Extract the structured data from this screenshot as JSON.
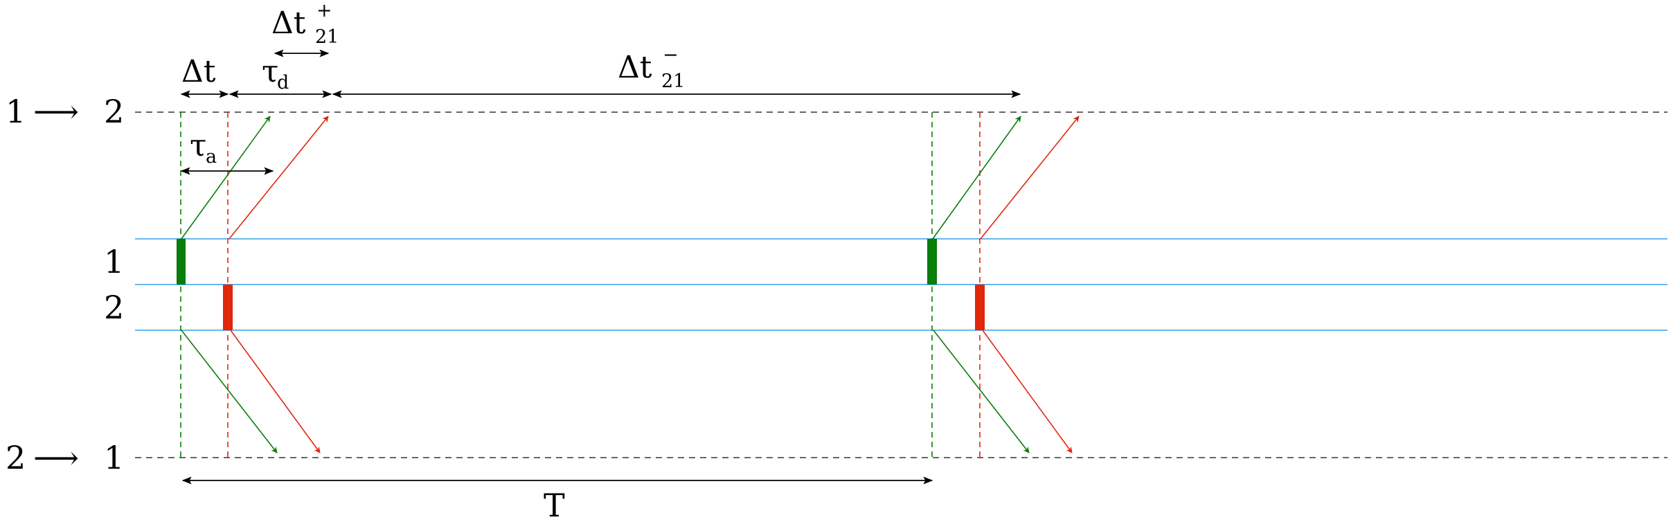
{
  "labels": {
    "top_row_from": "1",
    "top_row_arrow": "⟶",
    "top_row_to": "2",
    "bottom_row_from": "2",
    "bottom_row_arrow": "⟶",
    "bottom_row_to": "1",
    "channel_1": "1",
    "channel_2": "2",
    "delta_t": "Δt",
    "tau": "τ",
    "tau_d_sub": "d",
    "tau_a_sub": "a",
    "delta_t21": "Δt",
    "sub_21": "21",
    "sup_plus": "+",
    "sup_minus": "−",
    "period": "T"
  },
  "colors": {
    "green": "#0a7d0a",
    "red": "#e0260b",
    "blue_line": "#66b8ee",
    "dashed_black": "#333333"
  }
}
